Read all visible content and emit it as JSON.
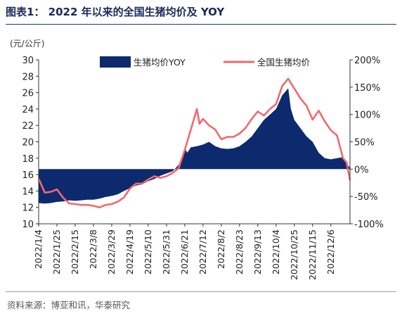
{
  "header": {
    "title": "图表1：  2022 年以来的全国生猪均价及 YOY"
  },
  "footer": {
    "source": "资料来源：博亚和讯，华泰研究"
  },
  "colors": {
    "yoy_area": "#0d2a6e",
    "price_line": "#f06a6e",
    "axis": "#333333",
    "rule": "#1f3a7a"
  },
  "chart_data": {
    "type": "area",
    "title": "",
    "unit_label": "(元/公斤)",
    "left_axis": {
      "min": 10,
      "max": 30,
      "ticks": [
        10,
        12,
        14,
        16,
        18,
        20,
        22,
        24,
        26,
        28,
        30
      ]
    },
    "right_axis": {
      "min": -100,
      "max": 200,
      "ticks": [
        "-100%",
        "-50%",
        "0%",
        "50%",
        "100%",
        "150%",
        "200%"
      ],
      "tick_values": [
        -100,
        -50,
        0,
        50,
        100,
        150,
        200
      ]
    },
    "x_ticks": [
      "2022/1/4",
      "2022/1/25",
      "2022/2/15",
      "2022/3/8",
      "2022/3/29",
      "2022/4/19",
      "2022/5/10",
      "2022/5/31",
      "2022/6/21",
      "2022/7/12",
      "2022/8/2",
      "2022/8/23",
      "2022/9/13",
      "2022/10/4",
      "2022/10/25",
      "2022/11/15",
      "2022/12/6"
    ],
    "x_range": [
      "2022/1/4",
      "2022/12/28"
    ],
    "legend": {
      "position": "top",
      "entries": [
        "生猪均价YOY",
        "全国生猪均价"
      ]
    },
    "grid": false,
    "series": [
      {
        "name": "生猪均价YOY",
        "axis": "right",
        "type": "area",
        "points": [
          [
            "2022/1/4",
            -62
          ],
          [
            "2022/1/11",
            -63
          ],
          [
            "2022/1/18",
            -62
          ],
          [
            "2022/1/25",
            -60
          ],
          [
            "2022/2/1",
            -59
          ],
          [
            "2022/2/8",
            -57
          ],
          [
            "2022/2/15",
            -58
          ],
          [
            "2022/2/22",
            -57
          ],
          [
            "2022/3/1",
            -56
          ],
          [
            "2022/3/8",
            -56
          ],
          [
            "2022/3/15",
            -54
          ],
          [
            "2022/3/22",
            -51
          ],
          [
            "2022/3/29",
            -49
          ],
          [
            "2022/4/5",
            -46
          ],
          [
            "2022/4/12",
            -40
          ],
          [
            "2022/4/19",
            -35
          ],
          [
            "2022/4/26",
            -30
          ],
          [
            "2022/5/3",
            -28
          ],
          [
            "2022/5/10",
            -22
          ],
          [
            "2022/5/17",
            -18
          ],
          [
            "2022/5/24",
            -12
          ],
          [
            "2022/5/31",
            -8
          ],
          [
            "2022/6/7",
            -4
          ],
          [
            "2022/6/14",
            8
          ],
          [
            "2022/6/21",
            38
          ],
          [
            "2022/6/24",
            30
          ],
          [
            "2022/6/28",
            40
          ],
          [
            "2022/7/5",
            42
          ],
          [
            "2022/7/12",
            45
          ],
          [
            "2022/7/19",
            50
          ],
          [
            "2022/7/26",
            42
          ],
          [
            "2022/8/2",
            38
          ],
          [
            "2022/8/9",
            37
          ],
          [
            "2022/8/16",
            38
          ],
          [
            "2022/8/23",
            42
          ],
          [
            "2022/8/30",
            50
          ],
          [
            "2022/9/6",
            60
          ],
          [
            "2022/9/13",
            75
          ],
          [
            "2022/9/20",
            90
          ],
          [
            "2022/9/27",
            100
          ],
          [
            "2022/10/4",
            110
          ],
          [
            "2022/10/11",
            135
          ],
          [
            "2022/10/18",
            148
          ],
          [
            "2022/10/21",
            110
          ],
          [
            "2022/10/25",
            90
          ],
          [
            "2022/11/1",
            75
          ],
          [
            "2022/11/8",
            60
          ],
          [
            "2022/11/15",
            50
          ],
          [
            "2022/11/22",
            30
          ],
          [
            "2022/11/29",
            20
          ],
          [
            "2022/12/6",
            18
          ],
          [
            "2022/12/13",
            20
          ],
          [
            "2022/12/20",
            22
          ],
          [
            "2022/12/24",
            10
          ],
          [
            "2022/12/28",
            3
          ]
        ]
      },
      {
        "name": "全国生猪均价",
        "axis": "left",
        "type": "line",
        "points": [
          [
            "2022/1/4",
            15.5
          ],
          [
            "2022/1/11",
            13.8
          ],
          [
            "2022/1/18",
            13.9
          ],
          [
            "2022/1/25",
            14.2
          ],
          [
            "2022/2/1",
            13.2
          ],
          [
            "2022/2/8",
            12.5
          ],
          [
            "2022/2/15",
            12.4
          ],
          [
            "2022/2/22",
            12.3
          ],
          [
            "2022/3/1",
            12.3
          ],
          [
            "2022/3/8",
            12.2
          ],
          [
            "2022/3/15",
            12.0
          ],
          [
            "2022/3/22",
            12.3
          ],
          [
            "2022/3/29",
            12.4
          ],
          [
            "2022/4/5",
            12.7
          ],
          [
            "2022/4/12",
            13.2
          ],
          [
            "2022/4/19",
            14.3
          ],
          [
            "2022/4/26",
            14.9
          ],
          [
            "2022/5/3",
            14.9
          ],
          [
            "2022/5/10",
            15.4
          ],
          [
            "2022/5/17",
            15.8
          ],
          [
            "2022/5/24",
            15.6
          ],
          [
            "2022/5/31",
            15.8
          ],
          [
            "2022/6/7",
            16.2
          ],
          [
            "2022/6/14",
            16.8
          ],
          [
            "2022/6/21",
            19.0
          ],
          [
            "2022/6/28",
            21.5
          ],
          [
            "2022/7/5",
            24.0
          ],
          [
            "2022/7/8",
            22.2
          ],
          [
            "2022/7/12",
            22.8
          ],
          [
            "2022/7/19",
            22.0
          ],
          [
            "2022/7/26",
            21.5
          ],
          [
            "2022/8/2",
            20.3
          ],
          [
            "2022/8/9",
            20.6
          ],
          [
            "2022/8/16",
            20.6
          ],
          [
            "2022/8/23",
            21.0
          ],
          [
            "2022/8/30",
            21.7
          ],
          [
            "2022/9/6",
            22.8
          ],
          [
            "2022/9/13",
            23.7
          ],
          [
            "2022/9/20",
            23.2
          ],
          [
            "2022/9/27",
            24.0
          ],
          [
            "2022/10/4",
            24.6
          ],
          [
            "2022/10/11",
            26.8
          ],
          [
            "2022/10/18",
            27.7
          ],
          [
            "2022/10/25",
            26.5
          ],
          [
            "2022/11/1",
            25.3
          ],
          [
            "2022/11/8",
            24.4
          ],
          [
            "2022/11/15",
            22.7
          ],
          [
            "2022/11/22",
            23.8
          ],
          [
            "2022/11/29",
            22.5
          ],
          [
            "2022/12/6",
            21.4
          ],
          [
            "2022/12/13",
            20.8
          ],
          [
            "2022/12/20",
            18.0
          ],
          [
            "2022/12/24",
            17.5
          ],
          [
            "2022/12/28",
            15.3
          ]
        ]
      }
    ]
  }
}
